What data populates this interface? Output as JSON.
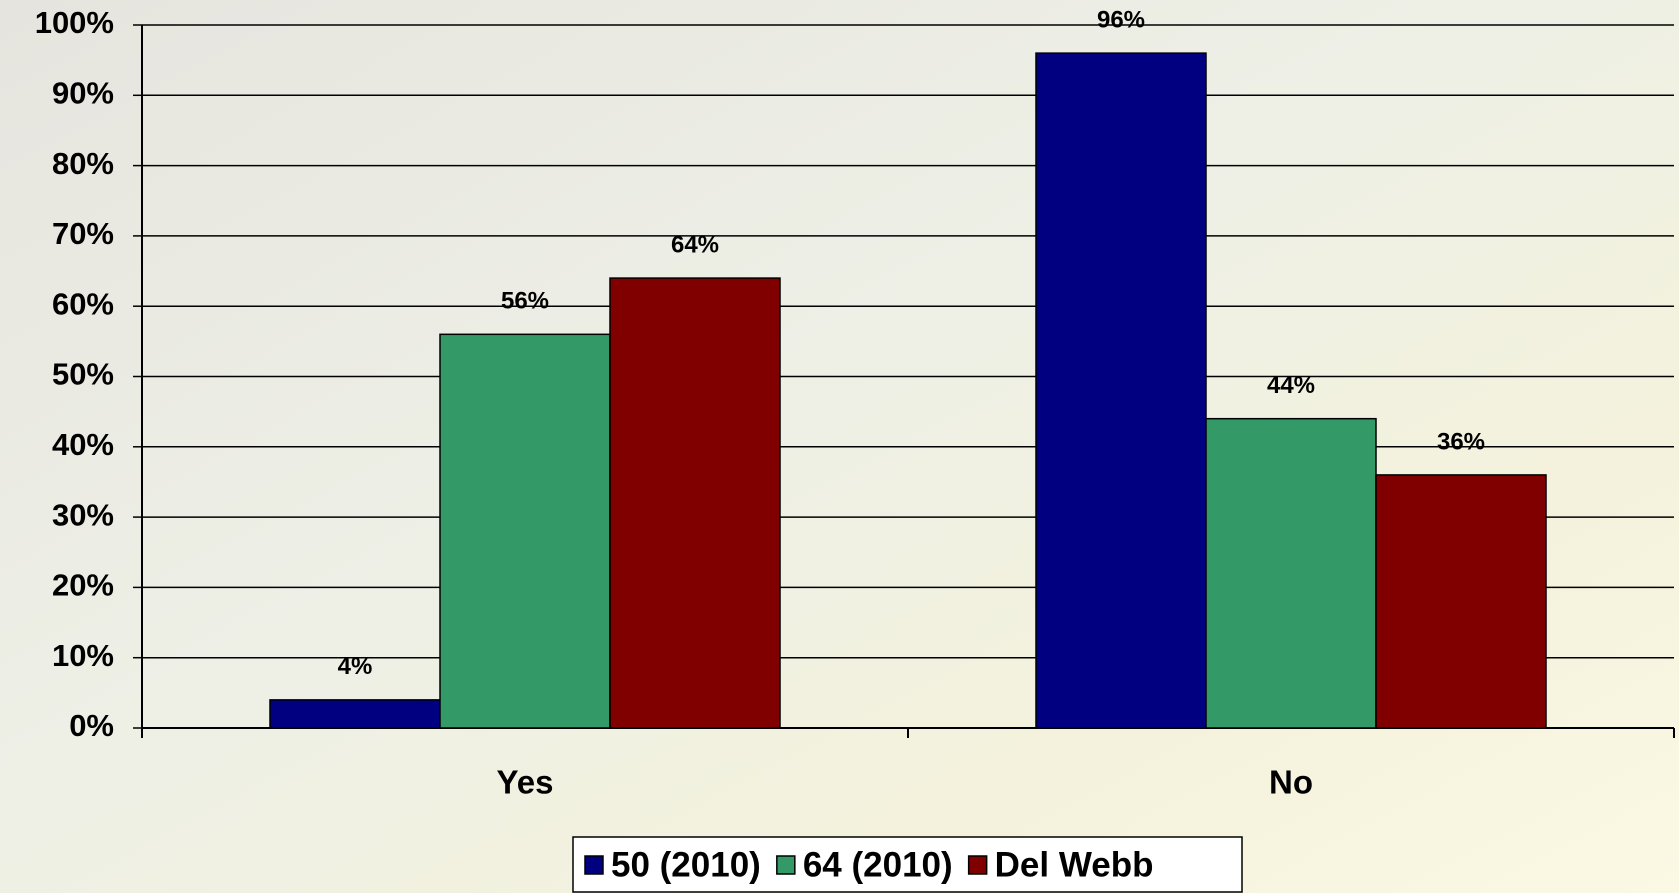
{
  "chart_data": {
    "type": "bar",
    "categories": [
      "Yes",
      "No"
    ],
    "series": [
      {
        "name": "50 (2010)",
        "color": "#000080",
        "values": [
          4,
          96
        ],
        "value_labels": [
          "4%",
          "96%"
        ]
      },
      {
        "name": "64 (2010)",
        "color": "#339966",
        "values": [
          56,
          44
        ],
        "value_labels": [
          "56%",
          "44%"
        ]
      },
      {
        "name": "Del Webb",
        "color": "#800000",
        "values": [
          64,
          36
        ],
        "value_labels": [
          "64%",
          "36%"
        ]
      }
    ],
    "ylim": [
      0,
      100
    ],
    "yticks": [
      {
        "value": 0,
        "label": "0%"
      },
      {
        "value": 10,
        "label": "10%"
      },
      {
        "value": 20,
        "label": "20%"
      },
      {
        "value": 30,
        "label": "30%"
      },
      {
        "value": 40,
        "label": "40%"
      },
      {
        "value": 50,
        "label": "50%"
      },
      {
        "value": 60,
        "label": "60%"
      },
      {
        "value": 70,
        "label": "70%"
      },
      {
        "value": 80,
        "label": "80%"
      },
      {
        "value": 90,
        "label": "90%"
      },
      {
        "value": 100,
        "label": "100%"
      }
    ],
    "grid": true,
    "legend": "bottom"
  }
}
